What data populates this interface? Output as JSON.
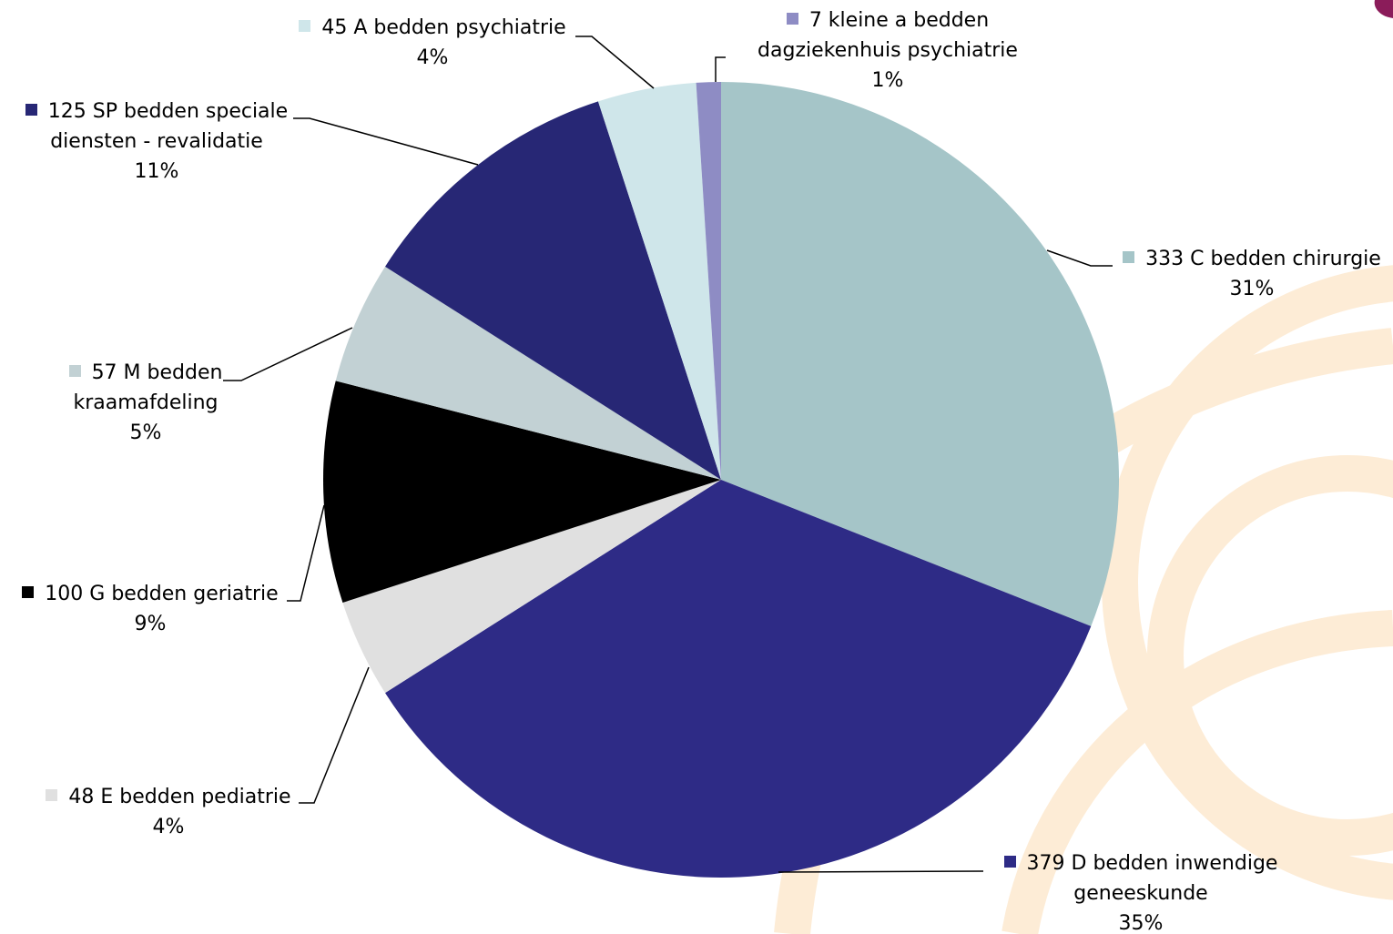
{
  "chart_data": {
    "type": "pie",
    "categories": [
      "333 C bedden chirurgie",
      "379 D bedden inwendige geneeskunde",
      "48 E bedden pediatrie",
      "100 G bedden geriatrie",
      "57 M bedden kraamafdeling",
      "125 SP bedden speciale diensten - revalidatie",
      "45 A bedden psychiatrie",
      "7 kleine a bedden dagziekenhuis psychiatrie"
    ],
    "values": [
      31,
      35,
      4,
      9,
      5,
      11,
      4,
      1
    ],
    "value_labels": [
      "31%",
      "35%",
      "4%",
      "9%",
      "5%",
      "11%",
      "4%",
      "1%"
    ],
    "colors": [
      "#a5c5c8",
      "#2e2b86",
      "#e0e0e0",
      "#000000",
      "#c2d1d4",
      "#272775",
      "#cfe6ea",
      "#8e8cc4"
    ]
  }
}
